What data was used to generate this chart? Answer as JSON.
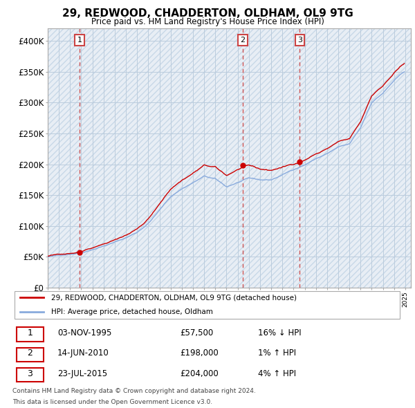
{
  "title": "29, REDWOOD, CHADDERTON, OLDHAM, OL9 9TG",
  "subtitle": "Price paid vs. HM Land Registry's House Price Index (HPI)",
  "legend_line1": "29, REDWOOD, CHADDERTON, OLDHAM, OL9 9TG (detached house)",
  "legend_line2": "HPI: Average price, detached house, Oldham",
  "transactions": [
    {
      "num": 1,
      "date_num": 1995.84,
      "price": 57500,
      "label": "03-NOV-1995",
      "price_str": "£57,500",
      "hpi_str": "16% ↓ HPI"
    },
    {
      "num": 2,
      "date_num": 2010.45,
      "price": 198000,
      "label": "14-JUN-2010",
      "price_str": "£198,000",
      "hpi_str": "1% ↑ HPI"
    },
    {
      "num": 3,
      "date_num": 2015.56,
      "price": 204000,
      "label": "23-JUL-2015",
      "price_str": "£204,000",
      "hpi_str": "4% ↑ HPI"
    }
  ],
  "yticks": [
    0,
    50000,
    100000,
    150000,
    200000,
    250000,
    300000,
    350000,
    400000
  ],
  "ylabels": [
    "£0",
    "£50K",
    "£100K",
    "£150K",
    "£200K",
    "£250K",
    "£300K",
    "£350K",
    "£400K"
  ],
  "ymax": 420000,
  "xmin": 1993,
  "xmax": 2025.5,
  "footer_line1": "Contains HM Land Registry data © Crown copyright and database right 2024.",
  "footer_line2": "This data is licensed under the Open Government Licence v3.0.",
  "line_color_house": "#cc0000",
  "line_color_hpi": "#88aadd",
  "vline_color": "#cc4444",
  "dot_color": "#cc0000",
  "grid_color": "#bbccdd",
  "hatch_bg": "#e8eef5"
}
